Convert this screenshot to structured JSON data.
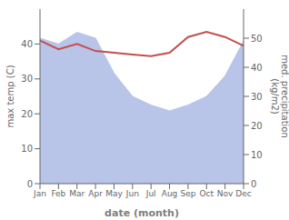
{
  "chart_data": {
    "type": "line",
    "categories": [
      "Jan",
      "Feb",
      "Mar",
      "Apr",
      "May",
      "Jun",
      "Jul",
      "Aug",
      "Sep",
      "Oct",
      "Nov",
      "Dec"
    ],
    "xlabel": "date (month)",
    "ylabel": "max temp (C)",
    "y2label": "med. precipitation\n(kg/m2)",
    "ylim": [
      0,
      50
    ],
    "yticks": [
      0,
      10,
      20,
      30,
      40
    ],
    "y2lim": [
      0,
      60
    ],
    "y2ticks": [
      0,
      10,
      20,
      30,
      40,
      50
    ],
    "grid": false,
    "series": [
      {
        "name": "med. precipitation\n(kg/m2)",
        "type": "area",
        "axis": "y2",
        "color": "#b8c4e8",
        "values": [
          50,
          48,
          52,
          50,
          38,
          30,
          27,
          25,
          27,
          30,
          37,
          49
        ]
      },
      {
        "name": "max temp (C)",
        "type": "line",
        "color": "#c0504d",
        "values": [
          41.0,
          38.5,
          40.0,
          38.0,
          37.5,
          37.0,
          36.5,
          37.5,
          42.0,
          43.5,
          42.0,
          39.5
        ]
      }
    ]
  }
}
